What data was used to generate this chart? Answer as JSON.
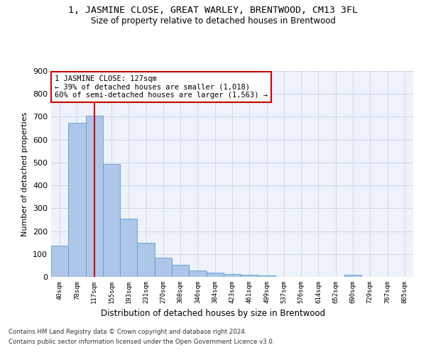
{
  "title": "1, JASMINE CLOSE, GREAT WARLEY, BRENTWOOD, CM13 3FL",
  "subtitle": "Size of property relative to detached houses in Brentwood",
  "xlabel": "Distribution of detached houses by size in Brentwood",
  "ylabel": "Number of detached properties",
  "categories": [
    "40sqm",
    "78sqm",
    "117sqm",
    "155sqm",
    "193sqm",
    "231sqm",
    "270sqm",
    "308sqm",
    "346sqm",
    "384sqm",
    "423sqm",
    "461sqm",
    "499sqm",
    "537sqm",
    "576sqm",
    "614sqm",
    "652sqm",
    "690sqm",
    "729sqm",
    "767sqm",
    "805sqm"
  ],
  "values": [
    138,
    675,
    705,
    493,
    253,
    150,
    85,
    52,
    27,
    20,
    13,
    10,
    7,
    0,
    0,
    0,
    0,
    10,
    0,
    0,
    0
  ],
  "bar_color": "#aec6e8",
  "bar_edge_color": "#5a9fd4",
  "vline_x_index": 2,
  "vline_color": "#cc0000",
  "annotation_text": "1 JASMINE CLOSE: 127sqm\n← 39% of detached houses are smaller (1,018)\n60% of semi-detached houses are larger (1,563) →",
  "annotation_box_color": "#ffffff",
  "annotation_box_edge": "#cc0000",
  "ylim": [
    0,
    900
  ],
  "yticks": [
    0,
    100,
    200,
    300,
    400,
    500,
    600,
    700,
    800,
    900
  ],
  "grid_color": "#d0d8e8",
  "bg_color": "#edf2fb",
  "footer_line1": "Contains HM Land Registry data © Crown copyright and database right 2024.",
  "footer_line2": "Contains public sector information licensed under the Open Government Licence v3.0."
}
